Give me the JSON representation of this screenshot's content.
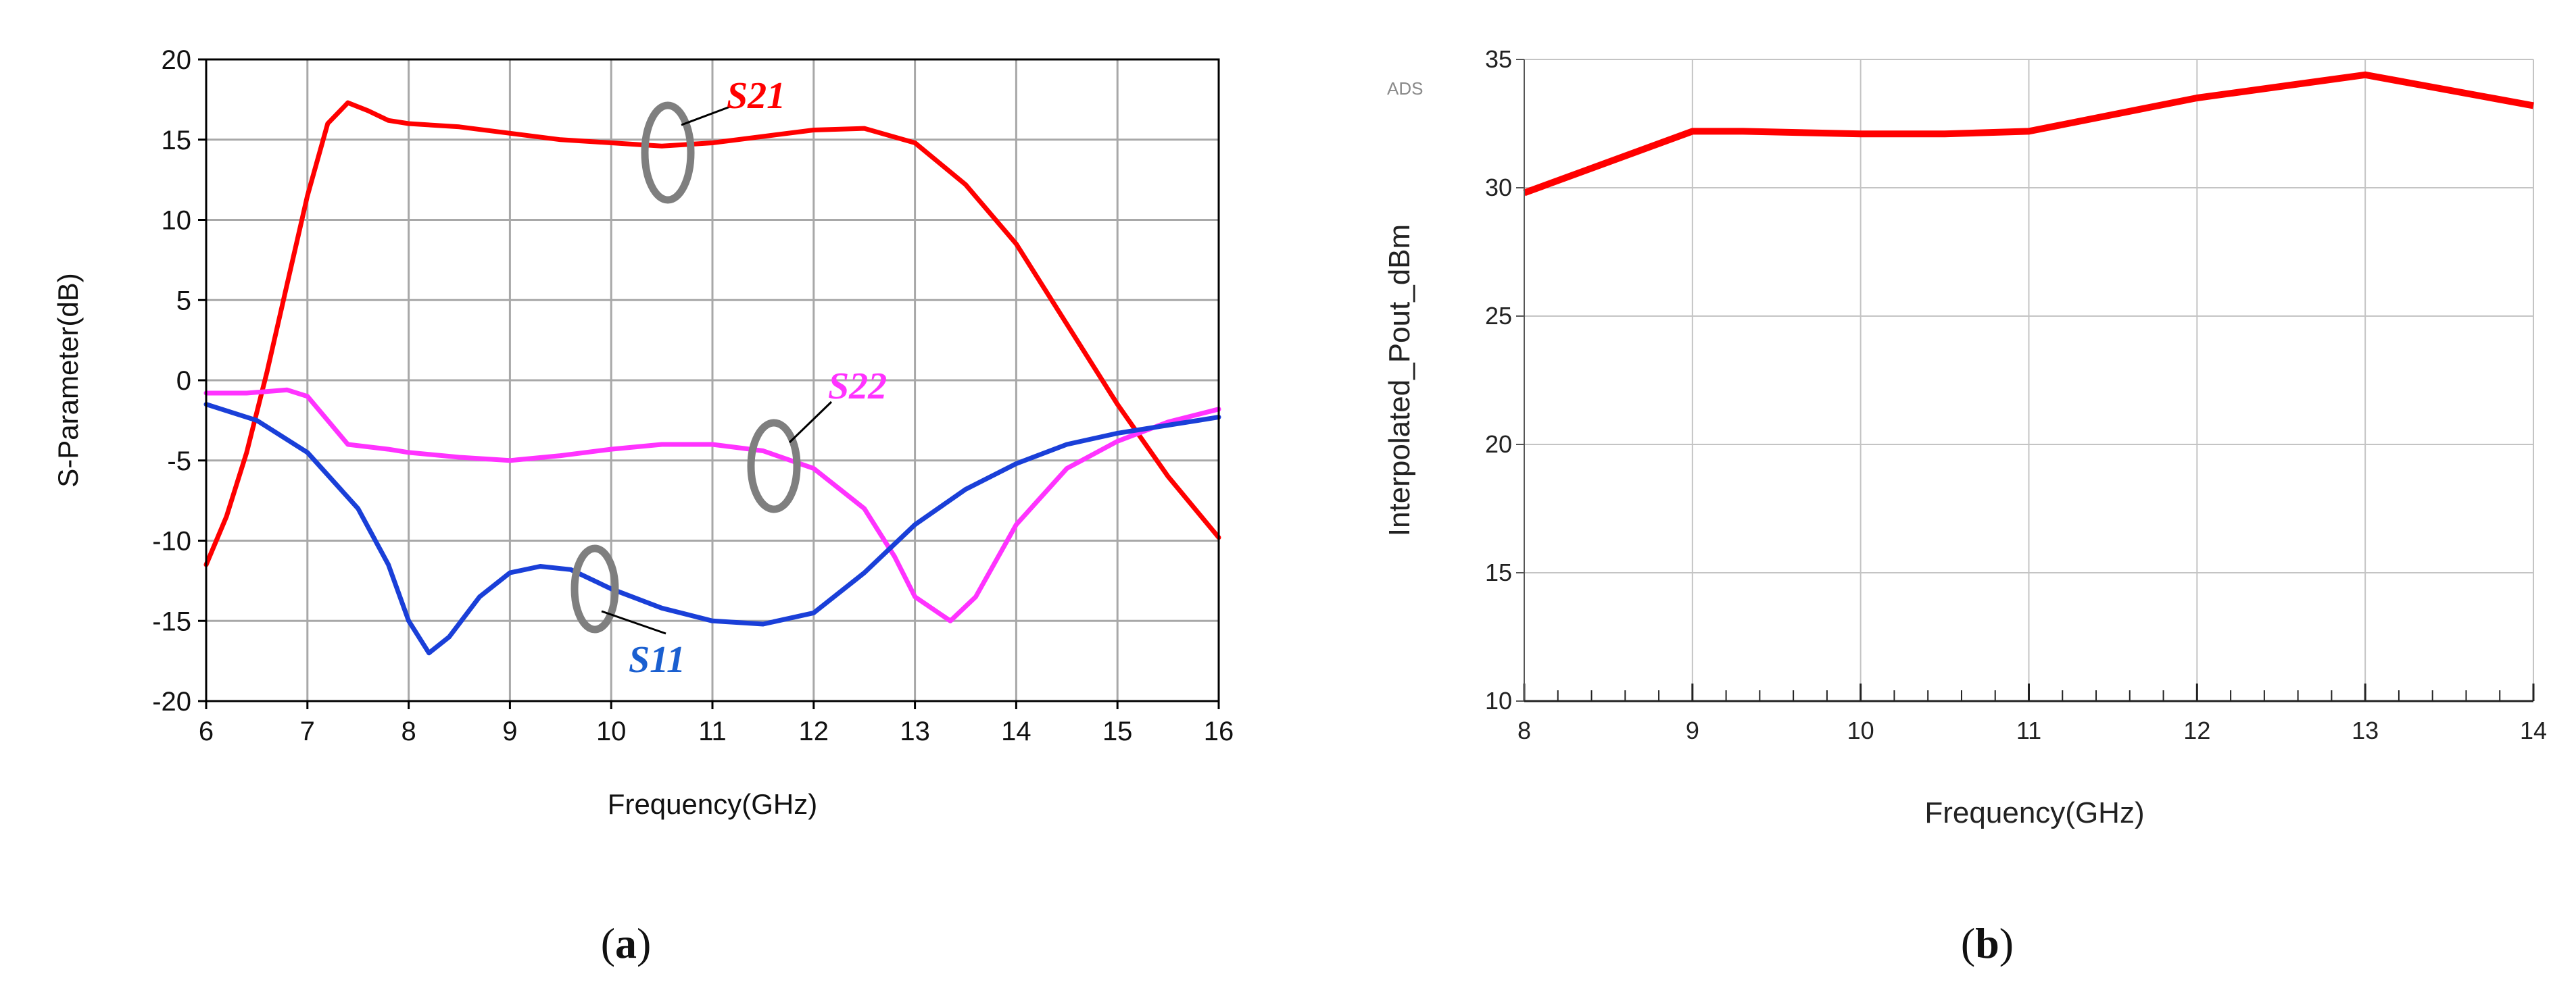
{
  "captions": {
    "a_letter": "a",
    "b_letter": "b"
  },
  "chart_data": [
    {
      "type": "line",
      "panel": "a",
      "title": "",
      "xlabel": "Frequency(GHz)",
      "ylabel": "S-Parameter(dB)",
      "xlim": [
        6,
        16
      ],
      "ylim": [
        -20,
        20
      ],
      "xticks": [
        6,
        7,
        8,
        9,
        10,
        11,
        12,
        13,
        14,
        15,
        16
      ],
      "yticks": [
        -20,
        -15,
        -10,
        -5,
        0,
        5,
        10,
        15,
        20
      ],
      "grid": true,
      "series": [
        {
          "name": "S21",
          "color": "#ff0000",
          "points": [
            [
              6.0,
              -11.5
            ],
            [
              6.2,
              -8.5
            ],
            [
              6.4,
              -4.5
            ],
            [
              6.6,
              0.5
            ],
            [
              6.8,
              6.0
            ],
            [
              7.0,
              11.5
            ],
            [
              7.2,
              16.0
            ],
            [
              7.4,
              17.3
            ],
            [
              7.6,
              16.8
            ],
            [
              7.8,
              16.2
            ],
            [
              8.0,
              16.0
            ],
            [
              8.5,
              15.8
            ],
            [
              9.0,
              15.4
            ],
            [
              9.5,
              15.0
            ],
            [
              10.0,
              14.8
            ],
            [
              10.5,
              14.6
            ],
            [
              11.0,
              14.8
            ],
            [
              11.5,
              15.2
            ],
            [
              12.0,
              15.6
            ],
            [
              12.5,
              15.7
            ],
            [
              13.0,
              14.8
            ],
            [
              13.5,
              12.2
            ],
            [
              14.0,
              8.5
            ],
            [
              14.5,
              3.5
            ],
            [
              15.0,
              -1.5
            ],
            [
              15.5,
              -6.0
            ],
            [
              16.0,
              -9.8
            ]
          ]
        },
        {
          "name": "S22",
          "color": "#ff33ff",
          "points": [
            [
              6.0,
              -0.8
            ],
            [
              6.4,
              -0.8
            ],
            [
              6.8,
              -0.6
            ],
            [
              7.0,
              -1.0
            ],
            [
              7.2,
              -2.5
            ],
            [
              7.4,
              -4.0
            ],
            [
              7.8,
              -4.3
            ],
            [
              8.0,
              -4.5
            ],
            [
              8.5,
              -4.8
            ],
            [
              9.0,
              -5.0
            ],
            [
              9.5,
              -4.7
            ],
            [
              10.0,
              -4.3
            ],
            [
              10.5,
              -4.0
            ],
            [
              11.0,
              -4.0
            ],
            [
              11.5,
              -4.4
            ],
            [
              12.0,
              -5.5
            ],
            [
              12.5,
              -8.0
            ],
            [
              12.8,
              -11.0
            ],
            [
              13.0,
              -13.5
            ],
            [
              13.35,
              -15.0
            ],
            [
              13.6,
              -13.5
            ],
            [
              14.0,
              -9.0
            ],
            [
              14.5,
              -5.5
            ],
            [
              15.0,
              -3.8
            ],
            [
              15.5,
              -2.6
            ],
            [
              16.0,
              -1.8
            ]
          ]
        },
        {
          "name": "S11",
          "color": "#1a3fd8",
          "points": [
            [
              6.0,
              -1.5
            ],
            [
              6.5,
              -2.5
            ],
            [
              7.0,
              -4.5
            ],
            [
              7.5,
              -8.0
            ],
            [
              7.8,
              -11.5
            ],
            [
              8.0,
              -15.0
            ],
            [
              8.2,
              -17.0
            ],
            [
              8.4,
              -16.0
            ],
            [
              8.7,
              -13.5
            ],
            [
              9.0,
              -12.0
            ],
            [
              9.3,
              -11.6
            ],
            [
              9.6,
              -11.8
            ],
            [
              10.0,
              -13.0
            ],
            [
              10.5,
              -14.2
            ],
            [
              11.0,
              -15.0
            ],
            [
              11.5,
              -15.2
            ],
            [
              12.0,
              -14.5
            ],
            [
              12.5,
              -12.0
            ],
            [
              13.0,
              -9.0
            ],
            [
              13.5,
              -6.8
            ],
            [
              14.0,
              -5.2
            ],
            [
              14.5,
              -4.0
            ],
            [
              15.0,
              -3.3
            ],
            [
              15.5,
              -2.8
            ],
            [
              16.0,
              -2.3
            ]
          ]
        }
      ],
      "annotations": [
        {
          "text": "S21",
          "color": "#ff0000"
        },
        {
          "text": "S22",
          "color": "#ff33ff"
        },
        {
          "text": "S11",
          "color": "#1a5fd0"
        }
      ]
    },
    {
      "type": "line",
      "panel": "b",
      "title": "",
      "corner_label": "ADS",
      "xlabel": "Frequency(GHz)",
      "ylabel": "Interpolated_Pout_dBm",
      "ylabel_color": "#ff0000",
      "xlim": [
        8,
        14
      ],
      "ylim": [
        10,
        35
      ],
      "xticks": [
        8,
        9,
        10,
        11,
        12,
        13,
        14
      ],
      "yticks": [
        10,
        15,
        20,
        25,
        30,
        35
      ],
      "grid": true,
      "series": [
        {
          "name": "",
          "color": "#ff0000",
          "points": [
            [
              8.0,
              29.8
            ],
            [
              9.0,
              32.2
            ],
            [
              9.3,
              32.2
            ],
            [
              10.0,
              32.1
            ],
            [
              10.5,
              32.1
            ],
            [
              11.0,
              32.2
            ],
            [
              12.0,
              33.5
            ],
            [
              13.0,
              34.4
            ],
            [
              14.0,
              33.2
            ]
          ]
        }
      ]
    }
  ]
}
